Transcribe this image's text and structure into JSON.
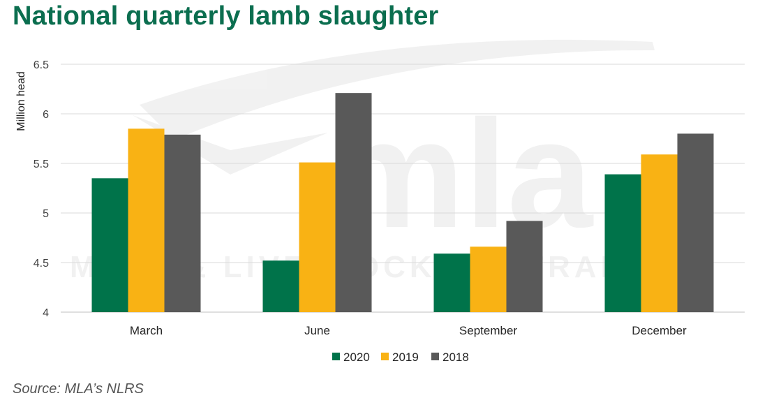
{
  "title": "National quarterly lamb slaughter",
  "source": "Source: MLA’s NLRS",
  "colors": {
    "2020": "#00734a",
    "2019": "#f9b214",
    "2018": "#595959",
    "title": "#0b6e4f"
  },
  "watermark": {
    "logo_text": "mla",
    "tagline": "MEAT & LIVESTOCK AUSTRALIA"
  },
  "chart_data": {
    "type": "bar",
    "title": "National quarterly lamb slaughter",
    "xlabel": "",
    "ylabel": "Million head",
    "categories": [
      "March",
      "June",
      "September",
      "December"
    ],
    "series": [
      {
        "name": "2020",
        "values": [
          5.35,
          4.52,
          4.59,
          5.39
        ]
      },
      {
        "name": "2019",
        "values": [
          5.85,
          5.51,
          4.66,
          5.59
        ]
      },
      {
        "name": "2018",
        "values": [
          5.79,
          6.21,
          4.92,
          5.8
        ]
      }
    ],
    "ylim": [
      4,
      6.5
    ],
    "yticks": [
      "4",
      "4.5",
      "5",
      "5.5",
      "6",
      "6.5"
    ],
    "ytick_values": [
      4,
      4.5,
      5,
      5.5,
      6,
      6.5
    ],
    "grid": true,
    "legend_position": "bottom"
  }
}
